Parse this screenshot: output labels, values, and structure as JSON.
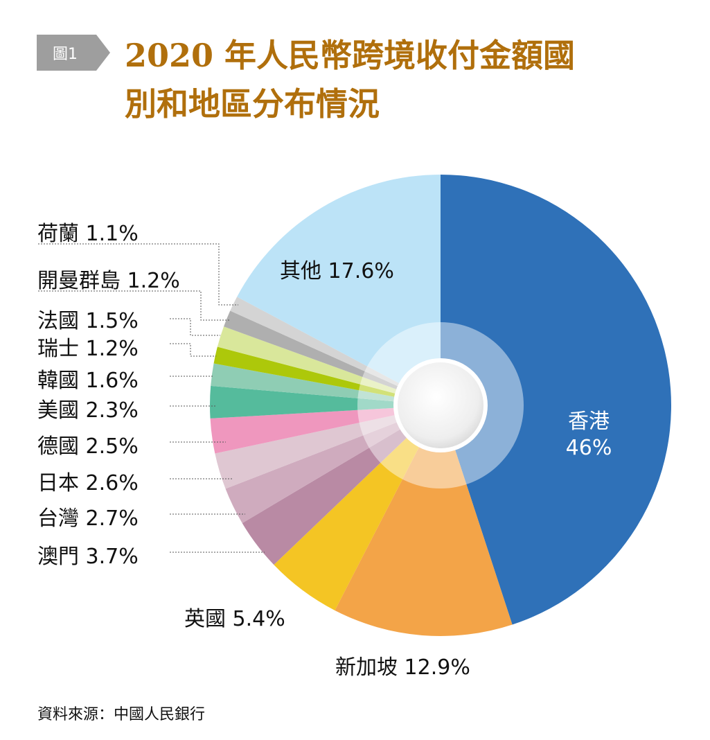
{
  "badge": "圖1",
  "title_line1": "2020 年人民幣跨境收付金額國",
  "title_line2": "別和地區分布情況",
  "source": "資料來源：中國人民銀行",
  "chart_data": {
    "type": "pie",
    "title": "2020 年人民幣跨境收付金額國別和地區分布情況",
    "unit": "%",
    "slices": [
      {
        "name": "香港",
        "value": 46,
        "label": "46%",
        "color": "#2f71b8"
      },
      {
        "name": "新加坡",
        "value": 12.9,
        "label": "12.9%",
        "color": "#f3a448"
      },
      {
        "name": "英國",
        "value": 5.4,
        "label": "5.4%",
        "color": "#f4c524"
      },
      {
        "name": "澳門",
        "value": 3.7,
        "label": "3.7%",
        "color": "#b98aa4"
      },
      {
        "name": "台灣",
        "value": 2.7,
        "label": "2.7%",
        "color": "#cfabbe"
      },
      {
        "name": "日本",
        "value": 2.6,
        "label": "2.6%",
        "color": "#dfc7d2"
      },
      {
        "name": "德國",
        "value": 2.5,
        "label": "2.5%",
        "color": "#ef97be"
      },
      {
        "name": "美國",
        "value": 2.3,
        "label": "2.3%",
        "color": "#55bb9c"
      },
      {
        "name": "韓國",
        "value": 1.6,
        "label": "1.6%",
        "color": "#8fcdb4"
      },
      {
        "name": "瑞士",
        "value": 1.2,
        "label": "1.2%",
        "color": "#adc80a"
      },
      {
        "name": "法國",
        "value": 1.5,
        "label": "1.5%",
        "color": "#d9e79b"
      },
      {
        "name": "開曼群島",
        "value": 1.2,
        "label": "1.2%",
        "color": "#afafaf"
      },
      {
        "name": "荷蘭",
        "value": 1.1,
        "label": "1.1%",
        "color": "#d4d4d4"
      },
      {
        "name": "其他",
        "value": 17.6,
        "label": "17.6%",
        "color": "#bce3f7"
      }
    ]
  }
}
